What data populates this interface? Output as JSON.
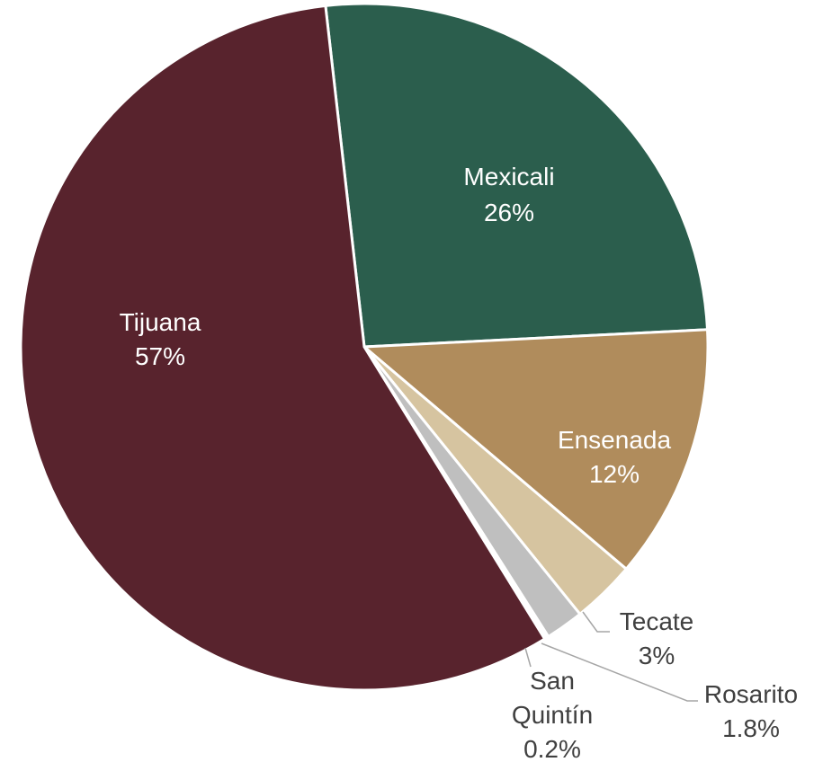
{
  "chart_data": {
    "type": "pie",
    "slices": [
      {
        "label": "Mexicali",
        "value": 26,
        "value_label": "26%",
        "color": "#2b5e4d"
      },
      {
        "label": "Ensenada",
        "value": 12,
        "value_label": "12%",
        "color": "#b08c5c"
      },
      {
        "label": "Tecate",
        "value": 3,
        "value_label": "3%",
        "color": "#d6c4a0"
      },
      {
        "label": "Rosarito",
        "value": 1.8,
        "value_label": "1.8%",
        "color": "#bfbfbf"
      },
      {
        "label": "San Quintín",
        "value": 0.2,
        "value_label": "0.2%",
        "color": "#ffffff"
      },
      {
        "label": "Tijuana",
        "value": 57,
        "value_label": "57%",
        "color": "#58232d"
      }
    ]
  }
}
